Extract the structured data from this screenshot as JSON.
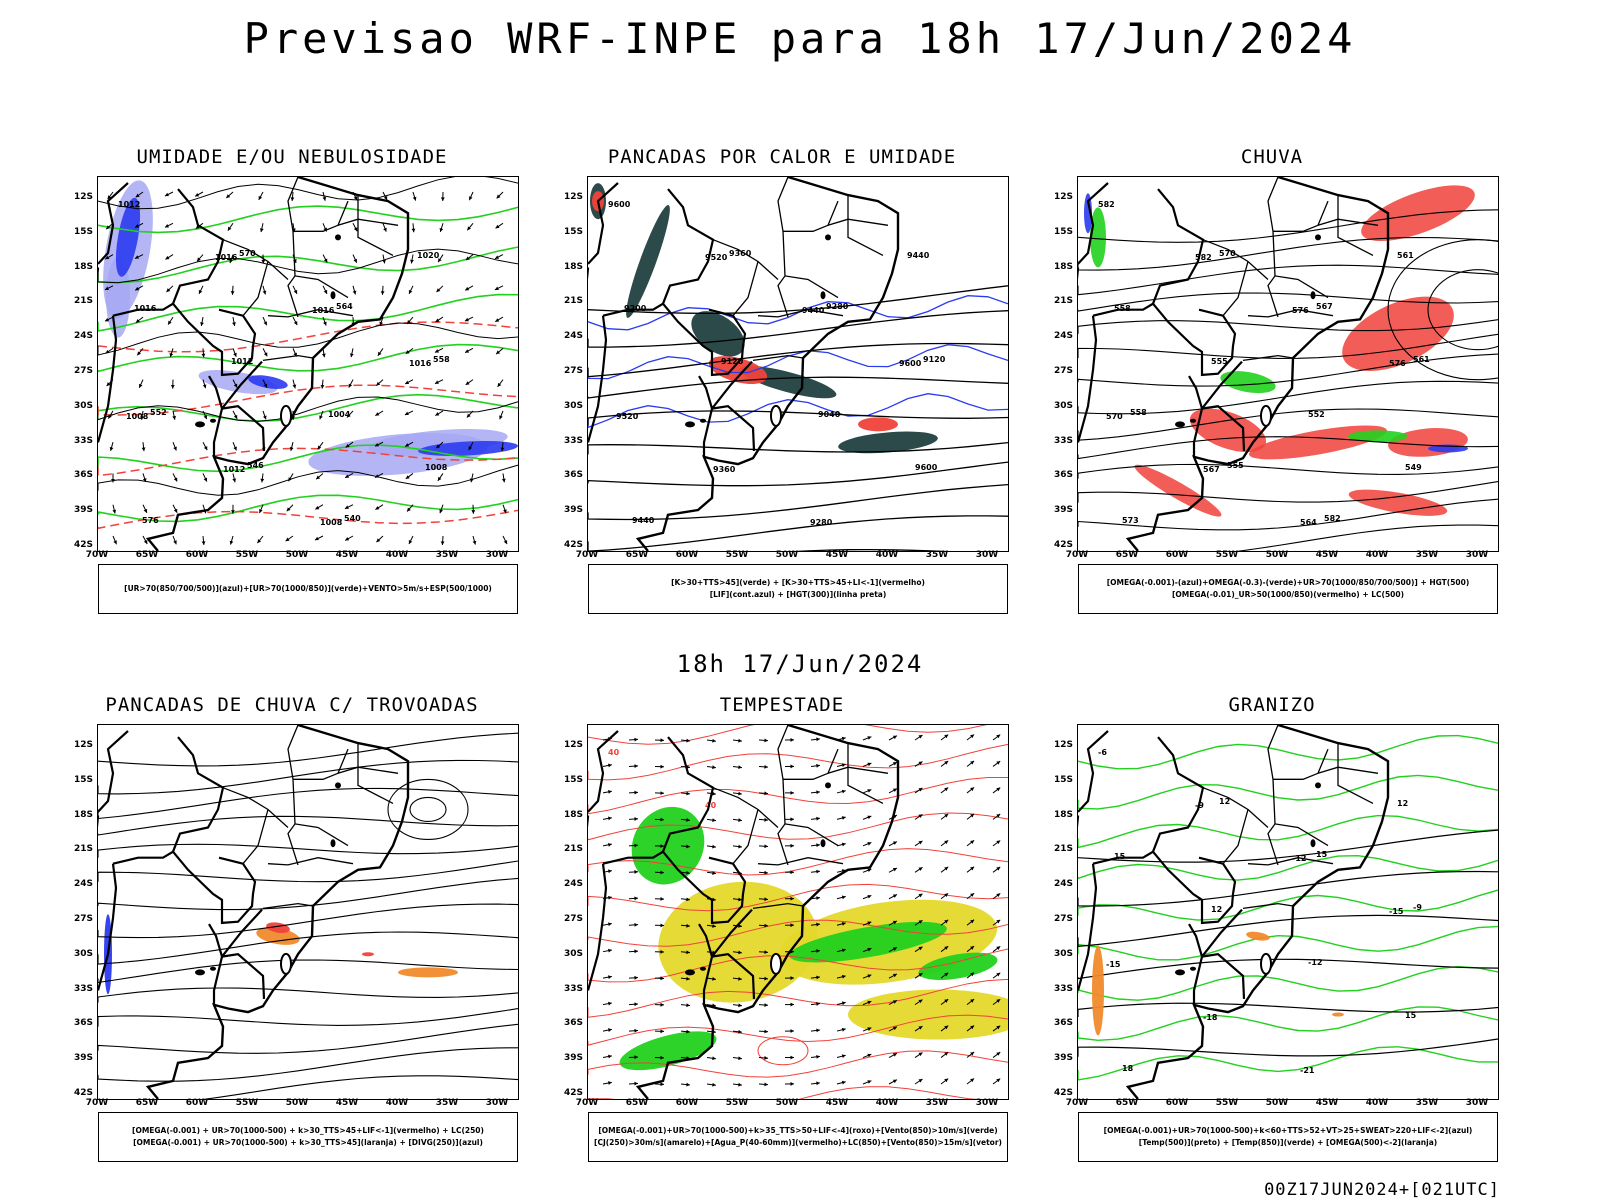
{
  "title": "Previsao WRF-INPE  para 18h 17/Jun/2024",
  "subtitle": "18h 17/Jun/2024",
  "footer": "00Z17JUN2024+[021UTC]",
  "axes": {
    "lat_ticks": [
      "12S",
      "15S",
      "18S",
      "21S",
      "24S",
      "27S",
      "30S",
      "33S",
      "36S",
      "39S",
      "42S"
    ],
    "lon_ticks": [
      "70W",
      "65W",
      "60W",
      "55W",
      "50W",
      "45W",
      "40W",
      "35W",
      "30W"
    ]
  },
  "colors": {
    "blue": "#2b3bf0",
    "lightblue": "#a6a8f2",
    "green": "#22d11e",
    "red": "#f0423a",
    "orange": "#f08a2c",
    "yellow": "#e5d82c",
    "darkteal": "#2c4a4a"
  },
  "panels": [
    {
      "title": "UMIDADE E/OU NEBULOSIDADE",
      "legend": [
        "[UR>70(850/700/500)](azul)+[UR>70(1000/850)](verde)+VENTO>5m/s+ESP(500/1000)"
      ],
      "contour_labels": [
        "1012",
        "1016",
        "1016",
        "1016",
        "1008",
        "1012",
        "1008",
        "1020",
        "1016",
        "1012",
        "1004",
        "1008",
        "576",
        "570",
        "564",
        "558",
        "552",
        "546",
        "540"
      ]
    },
    {
      "title": "PANCADAS POR CALOR E UMIDADE",
      "legend": [
        "[K>30+TTS>45](verde) + [K>30+TTS>45+LI<-1](vermelho)",
        "[LIF](cont.azul) + [HGT(300)](linha preta)"
      ],
      "contour_labels": [
        "9600",
        "9520",
        "9440",
        "9600",
        "9520",
        "9360",
        "9280",
        "9440",
        "9200",
        "9120",
        "9040",
        "9600",
        "9440",
        "9360",
        "9280",
        "9120"
      ]
    },
    {
      "title": "CHUVA",
      "legend": [
        "[OMEGA(-0.001)-(azul)+OMEGA(-0.3)-(verde)+UR>70(1000/850/700/500)] + HGT(500)",
        "[OMEGA(-0.01)_UR>50(1000/850)(vermelho) + LC(500)"
      ],
      "contour_labels": [
        "582",
        "582",
        "576",
        "576",
        "570",
        "567",
        "564",
        "561",
        "558",
        "555",
        "552",
        "549",
        "573",
        "570",
        "567",
        "561",
        "558",
        "555",
        "582"
      ]
    },
    {
      "title": "PANCADAS DE CHUVA C/ TROVOADAS",
      "legend": [
        "[OMEGA(-0.001) + UR>70(1000-500) + k>30_TTS>45+LIF<-1](vermelho) + LC(250)",
        "[OMEGA(-0.001) + UR>70(1000-500) + k>30_TTS>45](laranja) + [DIVG(250)](azul)"
      ],
      "contour_labels": []
    },
    {
      "title": "TEMPESTADE",
      "legend": [
        "[OMEGA(-0.001)+UR>70(1000-500)+k>35_TTS>50+LIF<-4](roxo)+[Vento(850)>10m/s](verde)",
        "[CJ(250)>30m/s](amarelo)+[Agua_P(40-60mm)](vermelho)+LC(850)+[Vento(850)>15m/s](vetor)"
      ],
      "contour_labels": [
        "40",
        "40"
      ]
    },
    {
      "title": "GRANIZO",
      "legend": [
        "[OMEGA(-0.001)+UR>70(1000-500)+k<60+TTS>52+VT>25+SWEAT>220+LIF<-2](azul)",
        "[Temp(500)](preto) + [Temp(850)](verde) + [OMEGA(500)<-2](laranja)"
      ],
      "contour_labels": [
        "-6",
        "-9",
        "-12",
        "-15",
        "-15",
        "-18",
        "-21",
        "12",
        "15",
        "12",
        "-12",
        "15",
        "18",
        "12",
        "15",
        "-9"
      ]
    }
  ]
}
